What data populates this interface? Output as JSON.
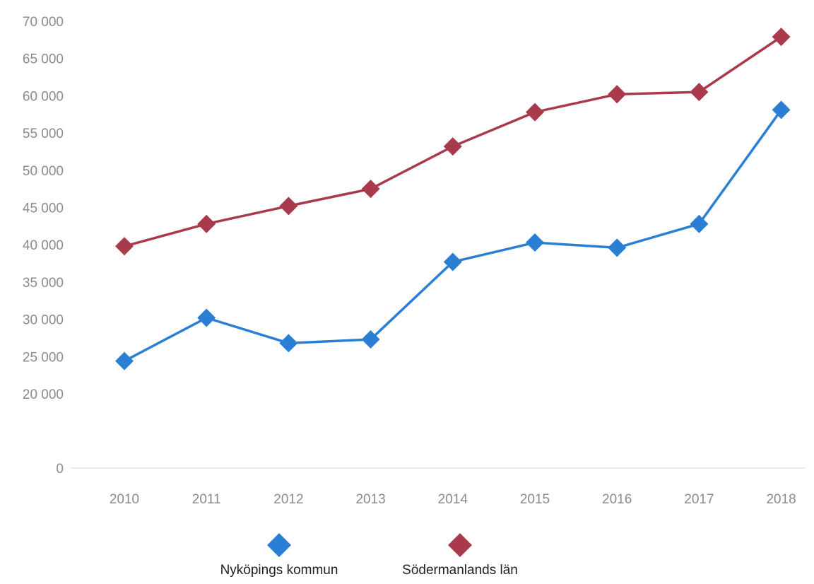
{
  "chart_data": {
    "type": "line",
    "categories": [
      "2010",
      "2011",
      "2012",
      "2013",
      "2014",
      "2015",
      "2016",
      "2017",
      "2018"
    ],
    "y_ticks": [
      0,
      20000,
      25000,
      30000,
      35000,
      40000,
      45000,
      50000,
      55000,
      60000,
      65000,
      70000
    ],
    "y_tick_labels": [
      "0",
      "20 000",
      "25 000",
      "30 000",
      "35 000",
      "40 000",
      "45 000",
      "50 000",
      "55 000",
      "60 000",
      "65 000",
      "70 000"
    ],
    "ylim": [
      0,
      70000
    ],
    "y_axis_break": true,
    "grid": false,
    "legend_position": "bottom",
    "series": [
      {
        "name": "Nyköpings kommun",
        "color": "#2a7fd4",
        "marker": "diamond",
        "values": [
          24400,
          30200,
          26800,
          27300,
          37700,
          40300,
          39600,
          42800,
          58100
        ]
      },
      {
        "name": "Södermanlands län",
        "color": "#a83a4b",
        "marker": "diamond",
        "values": [
          39800,
          42800,
          45200,
          47500,
          53200,
          57800,
          60200,
          60500,
          67900
        ]
      }
    ]
  }
}
